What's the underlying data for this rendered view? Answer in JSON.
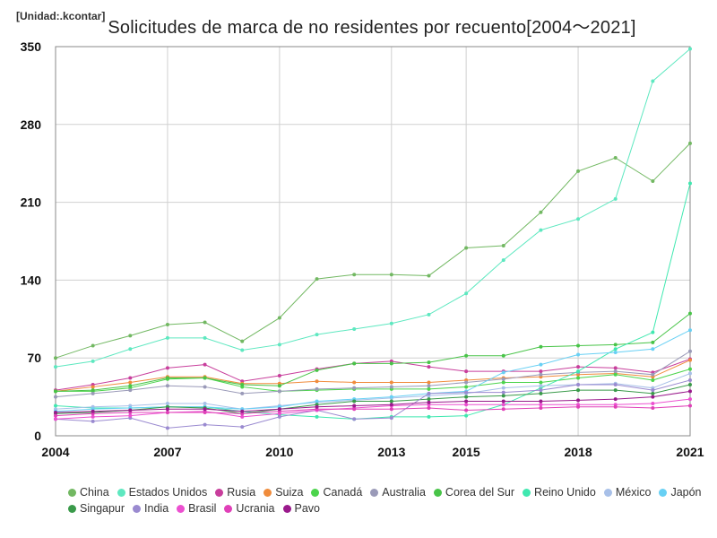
{
  "header": {
    "unit": "[Unidad:.kcontar]",
    "title": "Solicitudes de marca de no residentes por recuento[2004〜2021]"
  },
  "chart_data": {
    "type": "line",
    "title": "Solicitudes de marca de no residentes por recuento[2004〜2021]",
    "xlabel": "",
    "ylabel": "",
    "x": [
      2004,
      2005,
      2006,
      2007,
      2008,
      2009,
      2010,
      2011,
      2012,
      2013,
      2014,
      2015,
      2016,
      2017,
      2018,
      2019,
      2020,
      2021
    ],
    "x_ticks": [
      2004,
      2007,
      2010,
      2013,
      2015,
      2018,
      2021
    ],
    "y_ticks": [
      0,
      70,
      140,
      210,
      280,
      350
    ],
    "xlim": [
      2004,
      2021
    ],
    "ylim": [
      0,
      350
    ],
    "grid": true,
    "legend_position": "bottom",
    "series": [
      {
        "name": "China",
        "color": "#72b862",
        "values": [
          70,
          81,
          90,
          100,
          102,
          85,
          106,
          141,
          145,
          145,
          144,
          169,
          171,
          201,
          238,
          250,
          229,
          263
        ]
      },
      {
        "name": "Estados Unidos",
        "color": "#5ee8c0",
        "values": [
          62,
          67,
          78,
          88,
          88,
          77,
          82,
          91,
          96,
          101,
          109,
          128,
          158,
          185,
          195,
          213,
          319,
          348
        ]
      },
      {
        "name": "Rusia",
        "color": "#c83e9c",
        "values": [
          41,
          46,
          52,
          61,
          64,
          49,
          54,
          60,
          65,
          67,
          62,
          58,
          58,
          58,
          62,
          61,
          57,
          69
        ]
      },
      {
        "name": "Suiza",
        "color": "#f08c3c",
        "values": [
          40,
          44,
          48,
          53,
          53,
          47,
          47,
          49,
          48,
          48,
          48,
          50,
          52,
          53,
          55,
          56,
          53,
          68
        ]
      },
      {
        "name": "Canadá",
        "color": "#4cd44c",
        "values": [
          40,
          40,
          43,
          51,
          52,
          44,
          40,
          41,
          42,
          42,
          42,
          44,
          48,
          48,
          52,
          55,
          50,
          60
        ]
      },
      {
        "name": "Australia",
        "color": "#9a9ab8",
        "values": [
          35,
          38,
          41,
          45,
          44,
          38,
          40,
          42,
          43,
          44,
          45,
          48,
          51,
          55,
          57,
          58,
          55,
          76
        ]
      },
      {
        "name": "Corea del Sur",
        "color": "#48c448",
        "values": [
          40,
          41,
          45,
          52,
          52,
          46,
          45,
          59,
          65,
          65,
          66,
          72,
          72,
          80,
          81,
          82,
          84,
          110
        ]
      },
      {
        "name": "Reino Unido",
        "color": "#40e8b0",
        "values": [
          27,
          25,
          25,
          26,
          26,
          22,
          19,
          17,
          15,
          17,
          17,
          18,
          28,
          43,
          58,
          78,
          93,
          227
        ]
      },
      {
        "name": "México",
        "color": "#a8c0e8",
        "values": [
          24,
          26,
          27,
          29,
          29,
          24,
          27,
          30,
          32,
          34,
          36,
          38,
          43,
          45,
          46,
          47,
          43,
          56
        ]
      },
      {
        "name": "Japón",
        "color": "#68d0f4",
        "values": [
          22,
          24,
          25,
          26,
          26,
          24,
          26,
          31,
          33,
          35,
          38,
          40,
          57,
          64,
          73,
          75,
          78,
          95
        ]
      },
      {
        "name": "Singapur",
        "color": "#3a9a4a",
        "values": [
          20,
          21,
          23,
          26,
          25,
          20,
          24,
          28,
          31,
          31,
          33,
          35,
          36,
          38,
          41,
          41,
          38,
          46
        ]
      },
      {
        "name": "India",
        "color": "#9a8ad0",
        "values": [
          15,
          13,
          16,
          7,
          10,
          8,
          17,
          23,
          15,
          16,
          38,
          39,
          39,
          41,
          46,
          46,
          41,
          50
        ]
      },
      {
        "name": "Brasil",
        "color": "#ec50d0",
        "values": [
          15,
          17,
          18,
          21,
          22,
          17,
          20,
          23,
          25,
          27,
          28,
          28,
          28,
          28,
          28,
          28,
          29,
          33
        ]
      },
      {
        "name": "Ucrania",
        "color": "#e040b8",
        "values": [
          18,
          20,
          21,
          21,
          21,
          20,
          22,
          24,
          24,
          24,
          25,
          23,
          24,
          25,
          26,
          26,
          25,
          27
        ]
      },
      {
        "name": "Pavo",
        "color": "#9a1a8c",
        "values": [
          21,
          22,
          23,
          24,
          24,
          22,
          24,
          26,
          27,
          28,
          30,
          31,
          31,
          31,
          32,
          33,
          35,
          40
        ]
      }
    ]
  }
}
